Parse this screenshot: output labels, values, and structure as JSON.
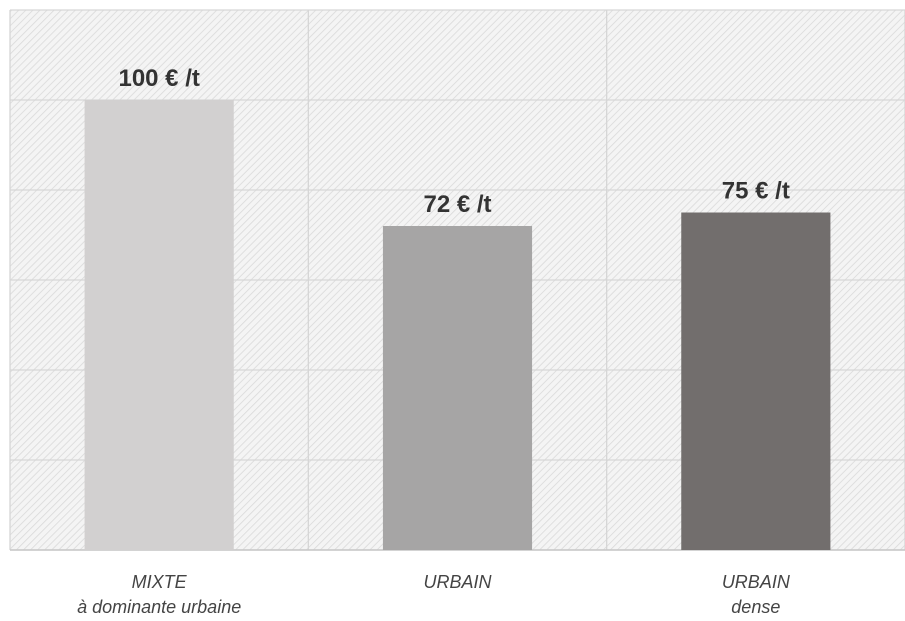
{
  "chart_data": {
    "type": "bar",
    "categories": [
      [
        "MIXTE",
        "à dominante urbaine"
      ],
      [
        "URBAIN"
      ],
      [
        "URBAIN",
        "dense"
      ]
    ],
    "values": [
      100,
      72,
      75
    ],
    "data_labels": [
      "100 € /t",
      "72 € /t",
      "75 € /t"
    ],
    "bar_colors": [
      "#d2d0d0",
      "#a6a5a5",
      "#726e6d"
    ],
    "title": "",
    "xlabel": "",
    "ylabel": "",
    "ylim": [
      0,
      120
    ],
    "gridlines": [
      0,
      20,
      40,
      60,
      80,
      100,
      120
    ],
    "grid": true,
    "background": "hatched"
  }
}
